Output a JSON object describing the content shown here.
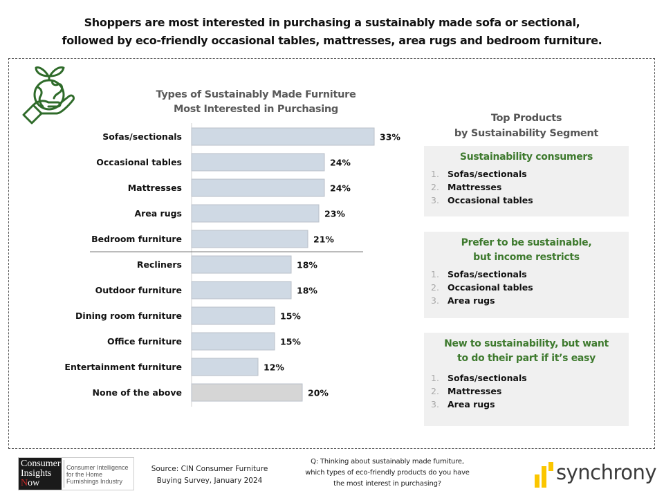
{
  "headline": {
    "line1": "Shoppers are most interested in purchasing a sustainably made sofa or sectional,",
    "line2": "followed by eco-friendly occasional tables, mattresses, area rugs and bedroom furniture."
  },
  "icons": {
    "top_left": "hand-holding-globe-with-sprout-icon"
  },
  "colors": {
    "bar_fill": "#cfd9e4",
    "bar_stroke": "#b8bfc8",
    "none_bar_fill": "#d6d6d6",
    "segment_title_green": "#3e7a2e",
    "icon_green": "#2f6b2a",
    "synchrony_yellow": "#fbc600"
  },
  "chart_data": {
    "type": "bar",
    "orientation": "horizontal",
    "title": "Types of Sustainably Made Furniture Most Interested in Purchasing",
    "title_lines": [
      "Types of Sustainably Made Furniture",
      "Most Interested in Purchasing"
    ],
    "categories": [
      "Sofas/sectionals",
      "Occasional tables",
      "Mattresses",
      "Area rugs",
      "Bedroom furniture",
      "Recliners",
      "Outdoor furniture",
      "Dining room furniture",
      "Office furniture",
      "Entertainment furniture",
      "None of the above"
    ],
    "values": [
      33,
      24,
      24,
      23,
      21,
      18,
      18,
      15,
      15,
      12,
      20
    ],
    "value_labels": [
      "33%",
      "24%",
      "24%",
      "23%",
      "21%",
      "18%",
      "18%",
      "15%",
      "15%",
      "12%",
      "20%"
    ],
    "highlight_gray_categories": [
      "None of the above"
    ],
    "separator_after_category": "Bedroom furniture",
    "xlabel": "",
    "ylabel": "",
    "xlim": [
      0,
      35
    ],
    "grid": false,
    "legend": "none",
    "unit": "%"
  },
  "right_panel": {
    "title_line1": "Top Products",
    "title_line2": "by Sustainability Segment",
    "segments": [
      {
        "title_line1": "Sustainability consumers",
        "title_line2": "",
        "items": [
          "Sofas/sectionals",
          "Mattresses",
          "Occasional tables"
        ]
      },
      {
        "title_line1": "Prefer to be sustainable,",
        "title_line2": "but income restricts",
        "items": [
          "Sofas/sectionals",
          "Occasional tables",
          "Area rugs"
        ]
      },
      {
        "title_line1": "New to sustainability, but want",
        "title_line2": "to do their part if it’s easy",
        "items": [
          "Sofas/sectionals",
          "Mattresses",
          "Area rugs"
        ]
      }
    ],
    "numbers": [
      "1.",
      "2.",
      "3."
    ]
  },
  "footer": {
    "cin_logo": {
      "word1": "Consumer",
      "word2": "Insights",
      "word3_first": "N",
      "word3_rest": "ow",
      "tagline1": "Consumer Intelligence",
      "tagline2": "for the Home",
      "tagline3": "Furnishings Industry"
    },
    "source_line1": "Source: CIN Consumer Furniture",
    "source_line2": "Buying Survey, January 2024",
    "question_line1": "Q: Thinking about sustainably made furniture,",
    "question_line2": "which types of eco-friendly products do you have",
    "question_line3": "the most interest in purchasing?",
    "brand": "synchrony"
  }
}
